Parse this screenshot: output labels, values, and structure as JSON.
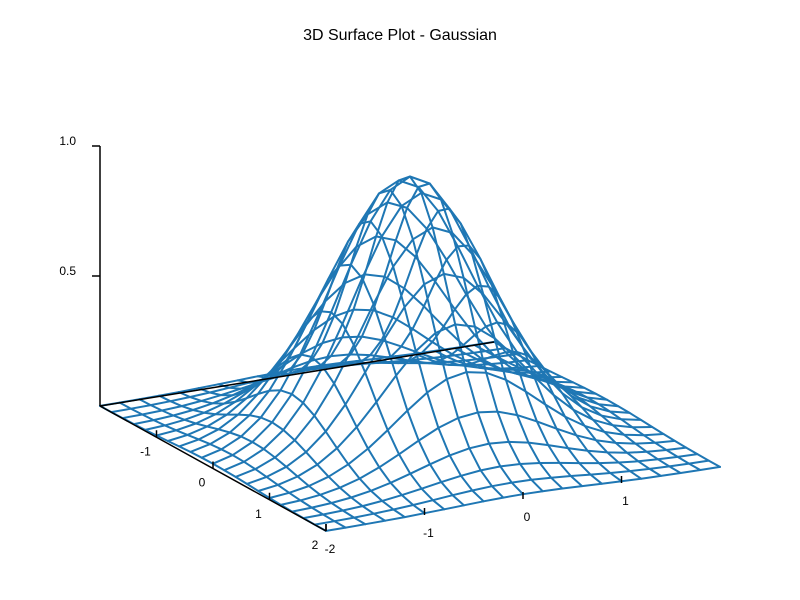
{
  "chart_data": {
    "type": "surface",
    "title": "3D Surface Plot - Gaussian",
    "function": "z = exp(-(x^2 + y^2))",
    "x": [
      -2.0,
      -1.8,
      -1.6,
      -1.4,
      -1.2,
      -1.0,
      -0.8,
      -0.6,
      -0.4,
      -0.2,
      0.0,
      0.2,
      0.4,
      0.6,
      0.8,
      1.0,
      1.2,
      1.4,
      1.6,
      1.8,
      2.0
    ],
    "y": [
      -2.0,
      -1.8,
      -1.6,
      -1.4,
      -1.2,
      -1.0,
      -0.8,
      -0.6,
      -0.4,
      -0.2,
      0.0,
      0.2,
      0.4,
      0.6,
      0.8,
      1.0,
      1.2,
      1.4,
      1.6,
      1.8,
      2.0
    ],
    "z_peak": 1.0,
    "xlim": [
      -2,
      2
    ],
    "ylim": [
      -2,
      2
    ],
    "zlim": [
      0,
      1.0
    ],
    "x_ticks": [
      "-1",
      "0",
      "1",
      "2"
    ],
    "y_ticks": [
      "-2",
      "-1",
      "0",
      "1"
    ],
    "z_ticks": [
      "0.5",
      "1.0"
    ],
    "line_color": "#1f77b4",
    "grid": false,
    "legend": "none"
  }
}
